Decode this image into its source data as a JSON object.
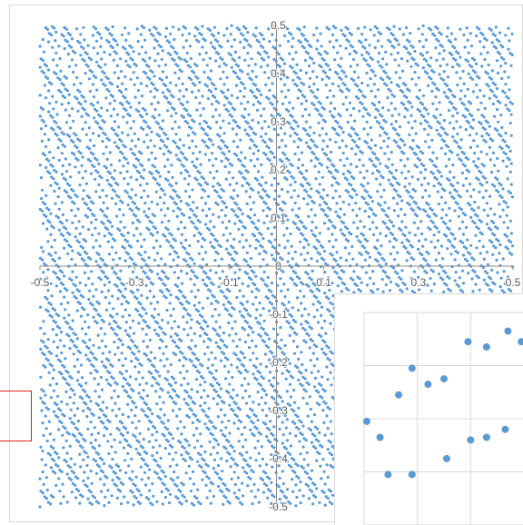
{
  "chart_data": [
    {
      "type": "scatter",
      "title": "",
      "xlabel": "",
      "ylabel": "",
      "xlim": [
        -0.5,
        0.5
      ],
      "ylim": [
        -0.5,
        0.5
      ],
      "grid": false,
      "legend": "none",
      "marker_color": "#5b9bd5",
      "x_ticks": [
        "-0.5",
        "-0.3",
        "-0.1",
        "0.1",
        "0.3",
        "0.5"
      ],
      "y_ticks": [
        "0.5",
        "0.4",
        "0.3",
        "0.2",
        "0.1",
        "0",
        "-0.1",
        "-0.2",
        "-0.3",
        "-0.4",
        "-0.5"
      ],
      "pattern": "dense quasi-random point set (~6000 points) filling the square; diagonal lattice structure",
      "point_count": 6000,
      "lattice_generator": [
        0.0618,
        0.0382
      ]
    },
    {
      "type": "scatter",
      "title": "",
      "grid": true,
      "legend": "none",
      "marker_color": "#5b9bd5",
      "xlim": [
        0,
        4
      ],
      "ylim": [
        0,
        4
      ],
      "x": [
        0.05,
        0.3,
        0.45,
        0.65,
        0.9,
        0.9,
        1.2,
        1.5,
        1.55,
        1.95,
        2.0,
        2.3,
        2.3,
        2.65,
        2.7,
        2.95
      ],
      "y": [
        1.95,
        1.65,
        0.95,
        2.45,
        2.95,
        0.95,
        2.65,
        2.75,
        1.25,
        3.45,
        1.6,
        1.65,
        3.35,
        1.8,
        3.65,
        3.45
      ]
    }
  ]
}
